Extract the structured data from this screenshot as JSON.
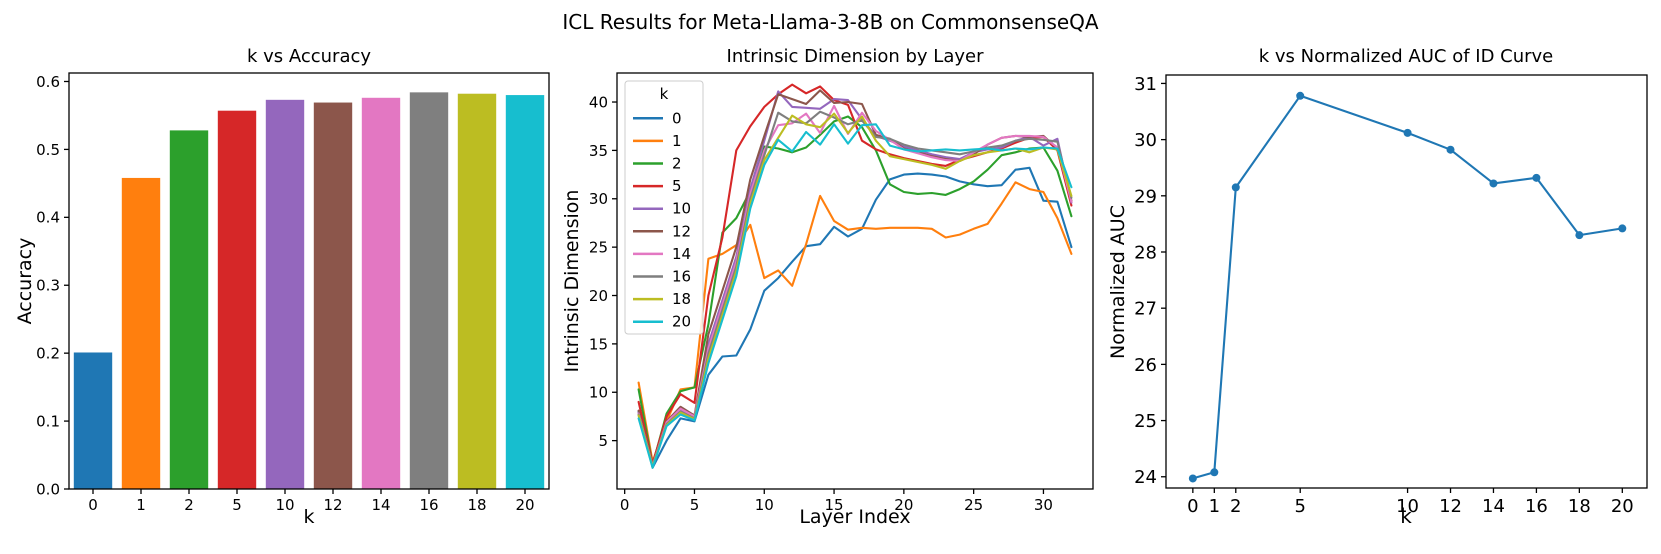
{
  "figure": {
    "suptitle": "ICL Results for Meta-Llama-3-8B on CommonsenseQA"
  },
  "chart_data": [
    {
      "id": "k-vs-accuracy",
      "type": "bar",
      "title": "k vs Accuracy",
      "xlabel": "k",
      "ylabel": "Accuracy",
      "categories": [
        "0",
        "1",
        "2",
        "5",
        "10",
        "12",
        "14",
        "16",
        "18",
        "20"
      ],
      "values": [
        0.201,
        0.458,
        0.528,
        0.557,
        0.573,
        0.569,
        0.576,
        0.584,
        0.582,
        0.58
      ],
      "colors": [
        "#1f77b4",
        "#ff7f0e",
        "#2ca02c",
        "#d62728",
        "#9467bd",
        "#8c564b",
        "#e377c2",
        "#7f7f7f",
        "#bcbd22",
        "#17becf"
      ],
      "xlim": [
        -0.5,
        9.5
      ],
      "ylim": [
        0,
        0.6125
      ],
      "yticks": [
        0,
        0.1,
        0.2,
        0.3,
        0.4,
        0.5,
        0.6
      ],
      "ytick_labels": [
        "0.0",
        "0.1",
        "0.2",
        "0.3",
        "0.4",
        "0.5",
        "0.6"
      ],
      "grid": false
    },
    {
      "id": "intrinsic-dimension-by-layer",
      "type": "line",
      "title": "Intrinsic Dimension by Layer",
      "xlabel": "Layer Index",
      "ylabel": "Intrinsic Dimension",
      "legend_title": "k",
      "legend_position": "upper left",
      "grid": false,
      "x": [
        1,
        2,
        3,
        4,
        5,
        6,
        7,
        8,
        9,
        10,
        11,
        12,
        13,
        14,
        15,
        16,
        17,
        18,
        19,
        20,
        21,
        22,
        23,
        24,
        25,
        26,
        27,
        28,
        29,
        30,
        31,
        32
      ],
      "xlim": [
        -0.55,
        33.55
      ],
      "ylim": [
        0,
        43
      ],
      "xticks": [
        0,
        5,
        10,
        15,
        20,
        25,
        30
      ],
      "xtick_labels": [
        "0",
        "5",
        "10",
        "15",
        "20",
        "25",
        "30"
      ],
      "yticks": [
        5,
        10,
        15,
        20,
        25,
        30,
        35,
        40
      ],
      "ytick_labels": [
        "5",
        "10",
        "15",
        "20",
        "25",
        "30",
        "35",
        "40"
      ],
      "series": [
        {
          "name": "0",
          "color": "#1f77b4",
          "values": [
            8.0,
            2.2,
            5.0,
            7.3,
            7.0,
            11.8,
            13.7,
            13.8,
            16.5,
            20.5,
            21.8,
            23.5,
            25.1,
            25.3,
            27.1,
            26.1,
            26.9,
            29.9,
            32.0,
            32.5,
            32.6,
            32.5,
            32.3,
            31.8,
            31.5,
            31.3,
            31.4,
            33.0,
            33.2,
            29.8,
            29.7,
            25.0
          ]
        },
        {
          "name": "1",
          "color": "#ff7f0e",
          "values": [
            11.0,
            2.8,
            7.0,
            10.3,
            10.5,
            23.8,
            24.3,
            25.2,
            27.3,
            21.8,
            22.6,
            21.0,
            25.3,
            30.3,
            27.7,
            26.8,
            27.0,
            26.9,
            27.0,
            27.0,
            27.0,
            26.9,
            26.0,
            26.3,
            26.9,
            27.4,
            29.5,
            31.7,
            31.0,
            30.7,
            28.0,
            24.3
          ]
        },
        {
          "name": "2",
          "color": "#2ca02c",
          "values": [
            10.3,
            2.5,
            7.8,
            10.1,
            10.5,
            17.0,
            26.5,
            28.0,
            30.8,
            35.4,
            35.2,
            34.8,
            35.3,
            36.6,
            38.0,
            38.5,
            37.4,
            35.0,
            31.5,
            30.7,
            30.5,
            30.6,
            30.4,
            31.0,
            31.8,
            33.0,
            34.5,
            34.8,
            35.2,
            35.3,
            32.9,
            28.2
          ]
        },
        {
          "name": "5",
          "color": "#d62728",
          "values": [
            9.0,
            2.6,
            7.5,
            9.8,
            8.9,
            20.0,
            26.0,
            35.0,
            37.5,
            39.5,
            40.8,
            41.8,
            40.9,
            41.6,
            40.2,
            39.7,
            36.0,
            35.1,
            34.6,
            34.2,
            33.9,
            33.6,
            33.4,
            34.0,
            34.4,
            34.8,
            35.2,
            35.8,
            36.3,
            36.4,
            35.0,
            29.3
          ]
        },
        {
          "name": "10",
          "color": "#9467bd",
          "values": [
            7.9,
            2.4,
            6.8,
            8.2,
            7.4,
            15.0,
            19.5,
            24.0,
            31.0,
            36.0,
            41.1,
            39.5,
            39.4,
            39.3,
            40.3,
            40.2,
            38.2,
            36.5,
            36.0,
            35.4,
            35.0,
            34.6,
            34.3,
            34.1,
            34.8,
            35.1,
            35.3,
            36.0,
            36.4,
            35.5,
            36.2,
            29.6
          ]
        },
        {
          "name": "12",
          "color": "#8c564b",
          "values": [
            8.1,
            2.5,
            7.0,
            8.5,
            7.6,
            16.0,
            20.5,
            25.0,
            32.0,
            36.5,
            40.8,
            40.3,
            39.8,
            41.2,
            39.9,
            40.0,
            39.8,
            36.6,
            36.2,
            35.2,
            34.8,
            34.4,
            34.1,
            33.9,
            34.6,
            35.6,
            36.3,
            36.5,
            36.4,
            36.5,
            35.2,
            29.8
          ]
        },
        {
          "name": "14",
          "color": "#e377c2",
          "values": [
            7.8,
            2.4,
            6.9,
            8.3,
            7.5,
            14.5,
            19.0,
            23.5,
            30.5,
            35.0,
            37.6,
            37.8,
            38.8,
            36.8,
            39.6,
            36.7,
            38.9,
            37.0,
            36.1,
            35.1,
            34.7,
            34.3,
            34.0,
            33.9,
            34.8,
            35.6,
            36.3,
            36.5,
            36.5,
            36.4,
            35.3,
            29.7
          ]
        },
        {
          "name": "16",
          "color": "#7f7f7f",
          "values": [
            7.7,
            2.3,
            6.7,
            8.0,
            7.3,
            14.0,
            18.5,
            23.0,
            30.0,
            34.5,
            38.9,
            38.0,
            37.8,
            39.0,
            38.4,
            37.7,
            38.1,
            36.4,
            36.2,
            35.6,
            35.2,
            35.0,
            34.8,
            34.6,
            34.9,
            35.3,
            35.5,
            36.0,
            36.2,
            36.1,
            35.9,
            30.1
          ]
        },
        {
          "name": "18",
          "color": "#bcbd22",
          "values": [
            7.6,
            2.3,
            6.6,
            7.9,
            7.2,
            13.5,
            18.0,
            22.5,
            29.5,
            34.0,
            36.3,
            38.6,
            37.7,
            37.4,
            38.8,
            36.8,
            38.5,
            36.0,
            34.4,
            34.1,
            33.8,
            33.5,
            33.1,
            33.9,
            34.5,
            34.8,
            35.0,
            35.2,
            34.8,
            35.3,
            35.1,
            30.3
          ]
        },
        {
          "name": "20",
          "color": "#17becf",
          "values": [
            7.3,
            2.2,
            6.5,
            7.7,
            7.1,
            13.0,
            17.5,
            22.0,
            29.0,
            33.5,
            36.1,
            34.9,
            36.9,
            35.6,
            37.7,
            35.7,
            37.6,
            37.7,
            35.5,
            35.1,
            34.9,
            35.0,
            35.1,
            35.0,
            35.1,
            35.2,
            35.0,
            35.2,
            35.1,
            35.3,
            35.2,
            31.2
          ]
        }
      ]
    },
    {
      "id": "k-vs-normalized-auc",
      "type": "line",
      "title": "k vs Normalized AUC of ID Curve",
      "xlabel": "k",
      "ylabel": "Normalized AUC",
      "grid": false,
      "x": [
        0,
        1,
        2,
        5,
        10,
        12,
        14,
        16,
        18,
        20
      ],
      "xlim": [
        -1.25,
        21.15
      ],
      "ylim": [
        23.8,
        31.15
      ],
      "xticks": [
        0,
        1,
        2,
        5,
        10,
        12,
        14,
        16,
        18,
        20
      ],
      "xtick_labels": [
        "0",
        "1",
        "2",
        "5",
        "10",
        "12",
        "14",
        "16",
        "18",
        "20"
      ],
      "yticks": [
        24,
        25,
        26,
        27,
        28,
        29,
        30,
        31
      ],
      "ytick_labels": [
        "24",
        "25",
        "26",
        "27",
        "28",
        "29",
        "30",
        "31"
      ],
      "series": [
        {
          "name": "Normalized AUC",
          "color": "#1f77b4",
          "marker": "circle",
          "values": [
            23.97,
            24.08,
            29.15,
            30.78,
            30.12,
            29.82,
            29.22,
            29.32,
            28.3,
            28.42
          ]
        }
      ]
    }
  ]
}
